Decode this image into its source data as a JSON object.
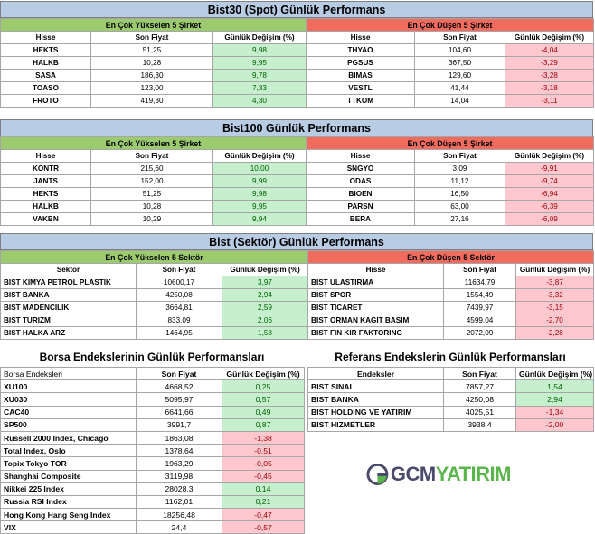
{
  "bist30": {
    "title": "Bist30 (Spot) Günlük Performans",
    "up_header": "En Çok Yükselen 5 Şirket",
    "down_header": "En Çok Düşen 5 Şirket",
    "col_name": "Hisse",
    "col_price": "Son Fiyat",
    "col_change": "Günlük Değişim (%)",
    "up": [
      {
        "name": "HEKTS",
        "price": "51,25",
        "change": "9,98"
      },
      {
        "name": "HALKB",
        "price": "10,28",
        "change": "9,95"
      },
      {
        "name": "SASA",
        "price": "186,30",
        "change": "9,78"
      },
      {
        "name": "TOASO",
        "price": "123,00",
        "change": "7,33"
      },
      {
        "name": "FROTO",
        "price": "419,30",
        "change": "4,30"
      }
    ],
    "down": [
      {
        "name": "THYAO",
        "price": "104,60",
        "change": "-4,04"
      },
      {
        "name": "PGSUS",
        "price": "367,50",
        "change": "-3,29"
      },
      {
        "name": "BIMAS",
        "price": "129,60",
        "change": "-3,28"
      },
      {
        "name": "VESTL",
        "price": "41,44",
        "change": "-3,18"
      },
      {
        "name": "TTKOM",
        "price": "14,04",
        "change": "-3,11"
      }
    ]
  },
  "bist100": {
    "title": "Bist100 Günlük Performans",
    "up_header": "En Çok Yükselen 5 Şirket",
    "down_header": "En Çok Düşen 5 Şirket",
    "col_name": "Hisse",
    "col_price": "Son Fiyat",
    "col_change": "Günlük Değişim (%)",
    "up": [
      {
        "name": "KONTR",
        "price": "215,60",
        "change": "10,00"
      },
      {
        "name": "JANTS",
        "price": "152,00",
        "change": "9,99"
      },
      {
        "name": "HEKTS",
        "price": "51,25",
        "change": "9,98"
      },
      {
        "name": "HALKB",
        "price": "10,28",
        "change": "9,95"
      },
      {
        "name": "VAKBN",
        "price": "10,29",
        "change": "9,94"
      }
    ],
    "down": [
      {
        "name": "SNGYO",
        "price": "3,09",
        "change": "-9,91"
      },
      {
        "name": "ODAS",
        "price": "11,12",
        "change": "-9,74"
      },
      {
        "name": "BIOEN",
        "price": "16,50",
        "change": "-6,94"
      },
      {
        "name": "PARSN",
        "price": "63,00",
        "change": "-6,39"
      },
      {
        "name": "BERA",
        "price": "27,16",
        "change": "-6,09"
      }
    ]
  },
  "sector": {
    "title": "Bist (Sektör) Günlük Performans",
    "up_header": "En Çok Yükselen 5 Sektör",
    "down_header": "En Çok Düşen 5 Sektör",
    "col_name_up": "Sektör",
    "col_name_down": "Hisse",
    "col_price": "Son Fiyat",
    "col_change": "Günlük Değişim (%)",
    "up": [
      {
        "name": "BIST KIMYA PETROL PLASTIK",
        "price": "10600,17",
        "change": "3,97"
      },
      {
        "name": "BIST BANKA",
        "price": "4250,08",
        "change": "2,94"
      },
      {
        "name": "BIST MADENCILIK",
        "price": "3664,81",
        "change": "2,59"
      },
      {
        "name": "BIST TURIZM",
        "price": "833,09",
        "change": "2,06"
      },
      {
        "name": "BIST HALKA ARZ",
        "price": "1464,95",
        "change": "1,58"
      }
    ],
    "down": [
      {
        "name": "BIST ULASTIRMA",
        "price": "11634,79",
        "change": "-3,87"
      },
      {
        "name": "BIST SPOR",
        "price": "1554,49",
        "change": "-3,32"
      },
      {
        "name": "BIST TICARET",
        "price": "7439,97",
        "change": "-3,15"
      },
      {
        "name": "BIST ORMAN KAGIT BASIM",
        "price": "4599,04",
        "change": "-2,70"
      },
      {
        "name": "BIST FIN KIR FAKTORING",
        "price": "2072,09",
        "change": "-2,28"
      }
    ]
  },
  "borsa": {
    "title": "Borsa Endekslerinin Günlük Performansları",
    "col_name": "Borsa Endeksleri",
    "col_price": "Son Fiyat",
    "col_change": "Günlük Değişim (%)",
    "rows": [
      {
        "name": "XU100",
        "price": "4668,52",
        "change": "0,25",
        "sign": "pos"
      },
      {
        "name": "XU030",
        "price": "5095,97",
        "change": "0,57",
        "sign": "pos"
      },
      {
        "name": "CAC40",
        "price": "6641,66",
        "change": "0,49",
        "sign": "pos"
      },
      {
        "name": "SP500",
        "price": "3991,7",
        "change": "0,87",
        "sign": "pos"
      },
      {
        "name": "Russell 2000 Index, Chicago",
        "price": "1863,08",
        "change": "-1,38",
        "sign": "neg"
      },
      {
        "name": "Total Index, Oslo",
        "price": "1378,64",
        "change": "-0,51",
        "sign": "neg"
      },
      {
        "name": "Topix Tokyo TOR",
        "price": "1963,29",
        "change": "-0,05",
        "sign": "neg"
      },
      {
        "name": "Shanghai Composite",
        "price": "3119,98",
        "change": "-0,45",
        "sign": "neg"
      },
      {
        "name": "Nikkei 225 Index",
        "price": "28028,3",
        "change": "0,14",
        "sign": "pos"
      },
      {
        "name": "Russia RSI Index",
        "price": "1162,01",
        "change": "0,21",
        "sign": "pos"
      },
      {
        "name": "Hong Kong Hang Seng Index",
        "price": "18256,48",
        "change": "-0,47",
        "sign": "neg"
      },
      {
        "name": "VIX",
        "price": "24,4",
        "change": "-0,57",
        "sign": "neg"
      }
    ]
  },
  "referans": {
    "title": "Referans Endekslerin  Günlük Performansları",
    "col_name": "Endeksler",
    "col_price": "Son Fiyat",
    "col_change": "Günlük Değişim (%)",
    "rows": [
      {
        "name": "BIST SINAI",
        "price": "7857,27",
        "change": "1,54",
        "sign": "pos"
      },
      {
        "name": "BIST BANKA",
        "price": "4250,08",
        "change": "2,94",
        "sign": "pos"
      },
      {
        "name": "BIST HOLDING VE YATIRIM",
        "price": "4025,51",
        "change": "-1,34",
        "sign": "neg"
      },
      {
        "name": "BIST HIZMETLER",
        "price": "3938,4",
        "change": "-2,00",
        "sign": "neg"
      }
    ]
  },
  "logo": {
    "part1": "GCM",
    "part2": "YATIRIM"
  },
  "colors": {
    "up": "#9ccb6f",
    "down": "#f26b5f",
    "pos_cell": "#c6efce",
    "neg_cell": "#ffc7ce",
    "title": "#b8cce4"
  }
}
